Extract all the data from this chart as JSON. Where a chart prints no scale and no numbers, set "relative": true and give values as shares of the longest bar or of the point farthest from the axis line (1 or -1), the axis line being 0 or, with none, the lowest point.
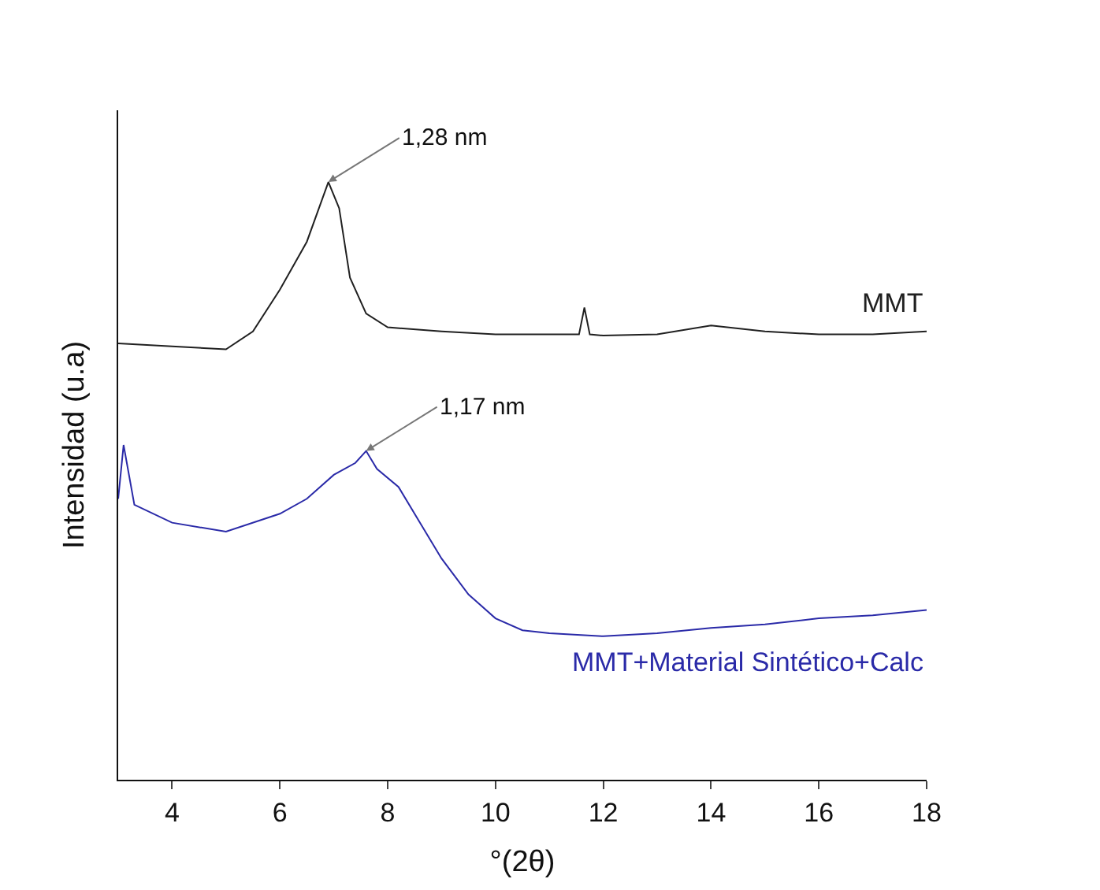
{
  "chart_data": {
    "type": "line",
    "xlabel": "°(2θ)",
    "ylabel": "Intensidad (u.a)",
    "relative": true,
    "xlim": [
      3,
      18
    ],
    "xticks": [
      4,
      6,
      8,
      10,
      12,
      14,
      16,
      18
    ],
    "legend": false,
    "marker": "none",
    "line_style": "solid",
    "series": [
      {
        "name": "MMT",
        "color": "#202020",
        "x": [
          3,
          4,
          5,
          5.5,
          6,
          6.5,
          6.9,
          7.1,
          7.3,
          7.6,
          8,
          9,
          10,
          11,
          11.55,
          11.65,
          11.75,
          12,
          13,
          14,
          15,
          16,
          17,
          18
        ],
        "values": [
          0.73,
          0.725,
          0.72,
          0.75,
          0.82,
          0.9,
          1.0,
          0.956,
          0.84,
          0.78,
          0.757,
          0.75,
          0.745,
          0.745,
          0.745,
          0.79,
          0.745,
          0.743,
          0.745,
          0.76,
          0.75,
          0.745,
          0.745,
          0.75
        ]
      },
      {
        "name": "MMT+Material Sintético+Calc",
        "color": "#2a2aa8",
        "x": [
          3,
          3.1,
          3.3,
          4,
          5,
          6,
          6.5,
          7,
          7.4,
          7.6,
          7.8,
          8.2,
          8.6,
          9,
          9.5,
          10,
          10.5,
          11,
          12,
          13,
          14,
          15,
          16,
          17,
          18
        ],
        "values": [
          0.47,
          0.56,
          0.46,
          0.43,
          0.415,
          0.445,
          0.47,
          0.51,
          0.53,
          0.55,
          0.52,
          0.49,
          0.43,
          0.37,
          0.31,
          0.27,
          0.25,
          0.245,
          0.24,
          0.245,
          0.254,
          0.26,
          0.27,
          0.275,
          0.284
        ]
      }
    ],
    "annotations": [
      {
        "text": "1,28 nm",
        "x": 6.9,
        "y": 1.0
      },
      {
        "text": "1,17 nm",
        "x": 7.6,
        "y": 0.55
      }
    ]
  }
}
